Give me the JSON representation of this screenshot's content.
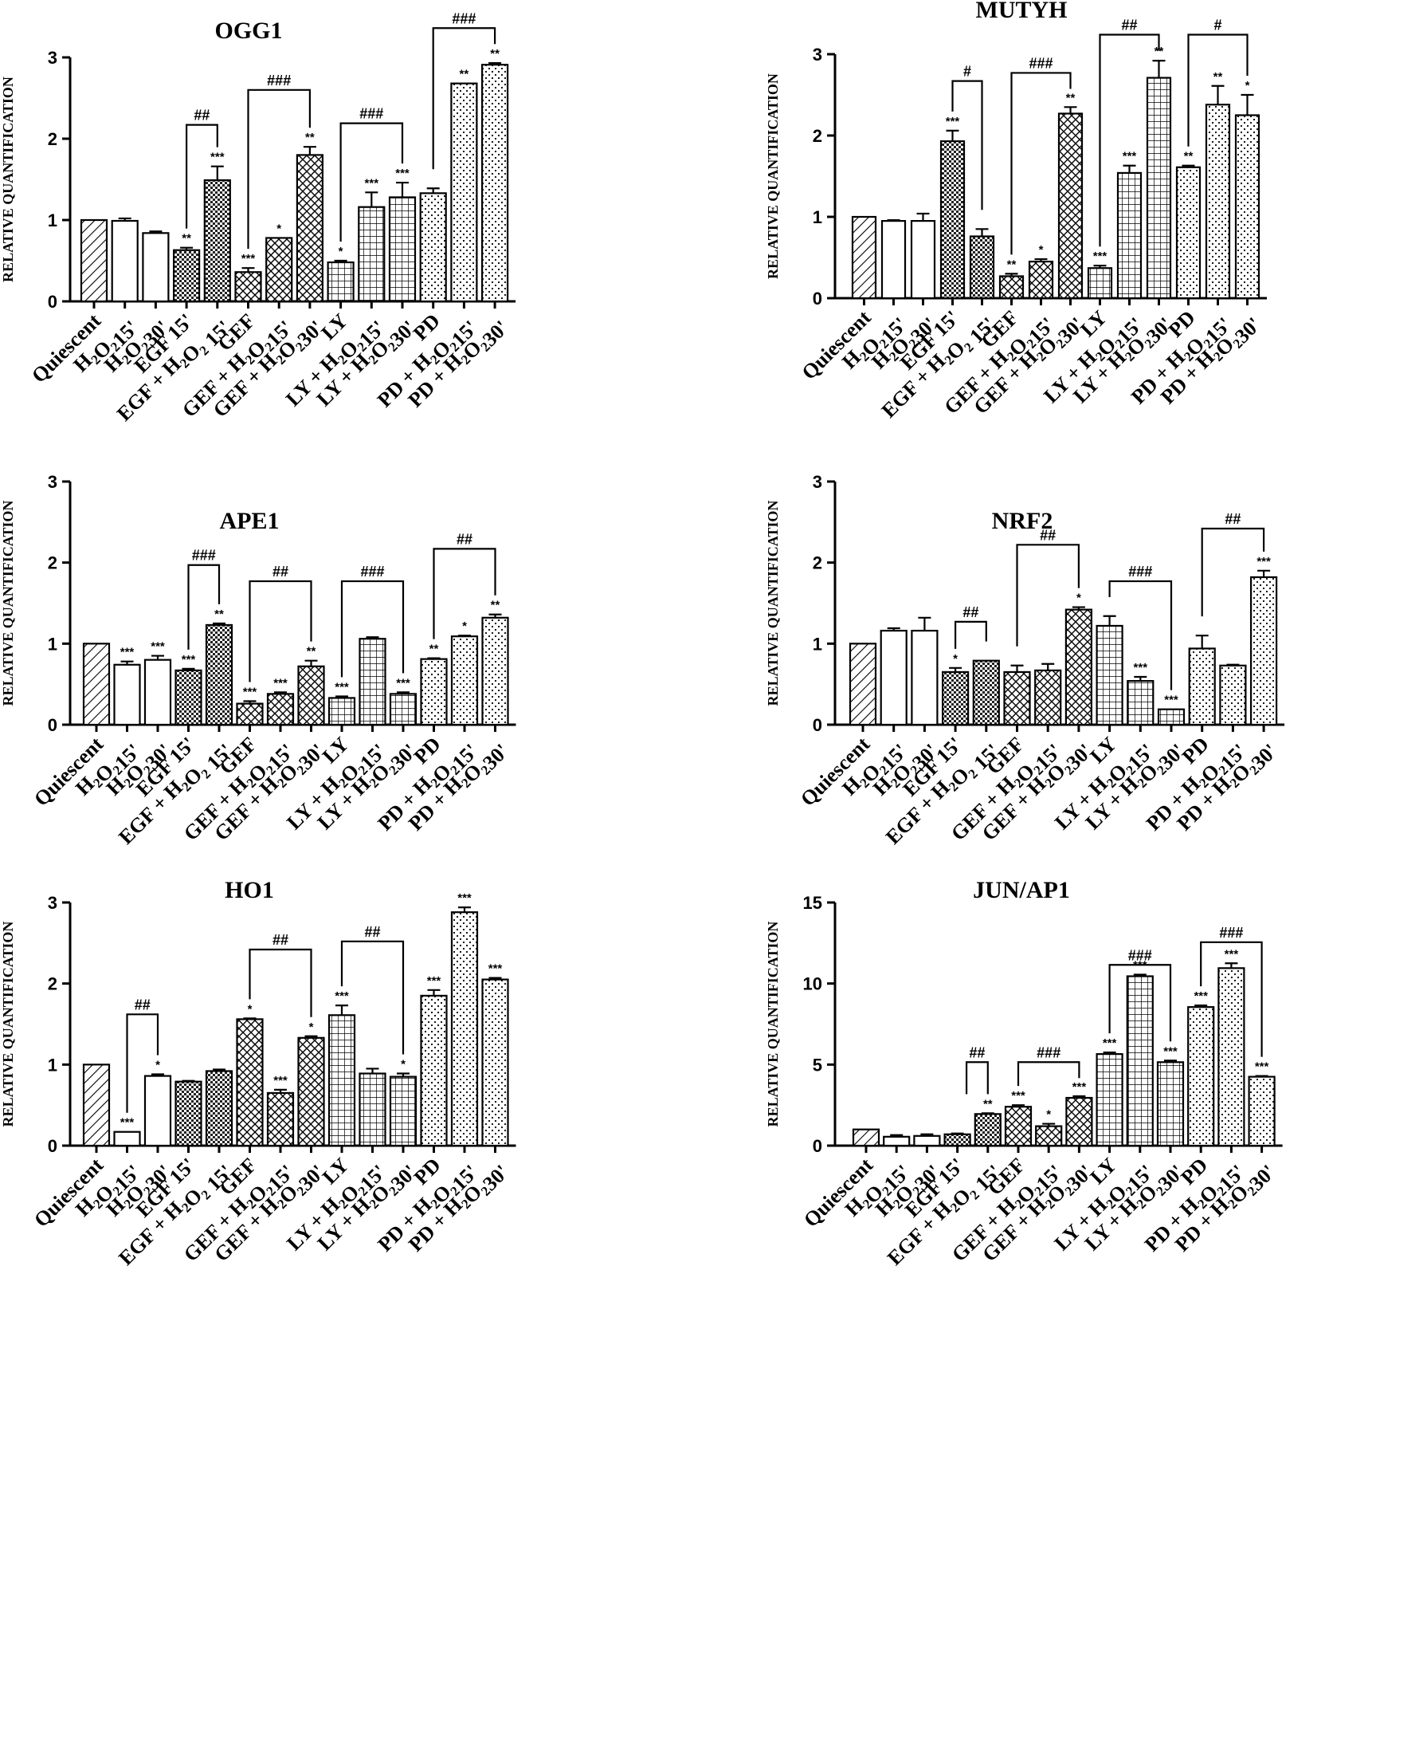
{
  "figure": {
    "categories": [
      {
        "label": "Quiescent",
        "main": "Quiescent",
        "sub1": "",
        "mid": "",
        "sub2": "",
        "tail": ""
      },
      {
        "label": "H2O2 15'",
        "main": "H",
        "sub1": "2",
        "mid": "O",
        "sub2": "2",
        "tail": "15'"
      },
      {
        "label": "H2O2 30'",
        "main": "H",
        "sub1": "2",
        "mid": "O",
        "sub2": "2",
        "tail": "30'"
      },
      {
        "label": "EGF 15'",
        "main": "EGF 15'",
        "sub1": "",
        "mid": "",
        "sub2": "",
        "tail": ""
      },
      {
        "label": "EGF + H2O2 15'",
        "main": "EGF + H",
        "sub1": "2",
        "mid": "O",
        "sub2": "2",
        "tail": " 15'"
      },
      {
        "label": "GEF",
        "main": "GEF",
        "sub1": "",
        "mid": "",
        "sub2": "",
        "tail": ""
      },
      {
        "label": "GEF + H2O2 15'",
        "main": "GEF + H",
        "sub1": "2",
        "mid": "O",
        "sub2": "2",
        "tail": "15'"
      },
      {
        "label": "GEF + H2O2 30'",
        "main": "GEF + H",
        "sub1": "2",
        "mid": "O",
        "sub2": "2",
        "tail": "30'"
      },
      {
        "label": "LY",
        "main": "LY",
        "sub1": "",
        "mid": "",
        "sub2": "",
        "tail": ""
      },
      {
        "label": "LY + H2O2 15'",
        "main": "LY + H",
        "sub1": "2",
        "mid": "O",
        "sub2": "2",
        "tail": "15'"
      },
      {
        "label": "LY + H2O2 30'",
        "main": "LY + H",
        "sub1": "2",
        "mid": "O",
        "sub2": "2",
        "tail": "30'"
      },
      {
        "label": "PD",
        "main": "PD",
        "sub1": "",
        "mid": "",
        "sub2": "",
        "tail": ""
      },
      {
        "label": "PD + H2O2 15'",
        "main": "PD + H",
        "sub1": "2",
        "mid": "O",
        "sub2": "2",
        "tail": "15'"
      },
      {
        "label": "PD + H2O2 30'",
        "main": "PD + H",
        "sub1": "2",
        "mid": "O",
        "sub2": "2",
        "tail": "30'"
      }
    ],
    "ylabel": "RELATIVE QUANTIFICATION",
    "patterns": [
      "diag",
      "white",
      "white",
      "checker",
      "checker",
      "lattice",
      "lattice",
      "lattice",
      "grid",
      "grid",
      "grid",
      "dots",
      "dots",
      "dots"
    ]
  },
  "chart_data": [
    {
      "type": "bar",
      "title": "OGG1",
      "ylim": [
        0,
        3
      ],
      "yticks": [
        "0",
        "1",
        "2",
        "3"
      ],
      "values": [
        1.0,
        0.99,
        0.84,
        0.63,
        1.49,
        0.36,
        0.78,
        1.8,
        0.48,
        1.16,
        1.28,
        1.33,
        2.68,
        2.91
      ],
      "errors": [
        0,
        0.03,
        0.02,
        0.03,
        0.17,
        0.05,
        0,
        0.1,
        0.02,
        0.18,
        0.18,
        0.06,
        0,
        0.02
      ],
      "stars": [
        "",
        "",
        "",
        "**",
        "***",
        "***",
        "*",
        "**",
        "*",
        "***",
        "***",
        "",
        "**",
        "**"
      ],
      "brackets": [
        {
          "from": 3,
          "to": 4,
          "y": 2.17,
          "label": "##"
        },
        {
          "from": 5,
          "to": 7,
          "y": 2.6,
          "label": "###"
        },
        {
          "from": 8,
          "to": 10,
          "y": 2.19,
          "label": "###"
        },
        {
          "from": 11,
          "to": 13,
          "y": 3.36,
          "label": "###"
        }
      ]
    },
    {
      "type": "bar",
      "title": "MUTYH",
      "ylim": [
        0,
        3
      ],
      "yticks": [
        "0",
        "1",
        "2",
        "3"
      ],
      "values": [
        1.0,
        0.95,
        0.95,
        1.93,
        0.76,
        0.27,
        0.45,
        2.27,
        0.37,
        1.54,
        2.71,
        1.61,
        2.38,
        2.25
      ],
      "errors": [
        0,
        0.01,
        0.09,
        0.13,
        0.09,
        0.03,
        0.03,
        0.08,
        0.03,
        0.09,
        0.21,
        0.02,
        0.23,
        0.25
      ],
      "stars": [
        "",
        "",
        "",
        "***",
        "",
        "**",
        "*",
        "**",
        "***",
        "***",
        "**",
        "**",
        "**",
        "*"
      ],
      "brackets": [
        {
          "from": 3,
          "to": 4,
          "y": 2.67,
          "label": "#"
        },
        {
          "from": 5,
          "to": 7,
          "y": 2.77,
          "label": "###"
        },
        {
          "from": 8,
          "to": 10,
          "y": 3.24,
          "label": "##"
        },
        {
          "from": 11,
          "to": 13,
          "y": 3.24,
          "label": "#"
        }
      ]
    },
    {
      "type": "bar",
      "title": "APE1",
      "ylim": [
        0,
        3
      ],
      "yticks": [
        "0",
        "1",
        "2",
        "3"
      ],
      "values": [
        1.0,
        0.74,
        0.8,
        0.67,
        1.23,
        0.26,
        0.38,
        0.72,
        0.33,
        1.06,
        0.38,
        0.81,
        1.09,
        1.32
      ],
      "errors": [
        0,
        0.04,
        0.05,
        0.02,
        0.02,
        0.03,
        0.02,
        0.07,
        0.02,
        0.02,
        0.02,
        0.01,
        0.01,
        0.04
      ],
      "stars": [
        "",
        "***",
        "***",
        "***",
        "**",
        "***",
        "***",
        "**",
        "***",
        "",
        "***",
        "**",
        "*",
        "**"
      ],
      "brackets": [
        {
          "from": 3,
          "to": 4,
          "y": 1.97,
          "label": "###"
        },
        {
          "from": 5,
          "to": 7,
          "y": 1.77,
          "label": "##"
        },
        {
          "from": 8,
          "to": 10,
          "y": 1.77,
          "label": "###"
        },
        {
          "from": 11,
          "to": 13,
          "y": 2.17,
          "label": "##"
        }
      ]
    },
    {
      "type": "bar",
      "title": "NRF2",
      "ylim": [
        0,
        3
      ],
      "yticks": [
        "0",
        "1",
        "2",
        "3"
      ],
      "values": [
        1.0,
        1.16,
        1.16,
        0.65,
        0.79,
        0.65,
        0.67,
        1.42,
        1.22,
        0.54,
        0.19,
        0.94,
        0.73,
        1.82
      ],
      "errors": [
        0,
        0.03,
        0.16,
        0.05,
        0,
        0.08,
        0.08,
        0.03,
        0.12,
        0.05,
        0,
        0.16,
        0.01,
        0.08
      ],
      "stars": [
        "",
        "",
        "",
        "*",
        "",
        "",
        "",
        "*",
        "",
        "***",
        "***",
        "",
        "",
        "***"
      ],
      "brackets": [
        {
          "from": 3,
          "to": 4,
          "y": 1.27,
          "label": "##"
        },
        {
          "from": 5,
          "to": 7,
          "y": 2.22,
          "label": "##"
        },
        {
          "from": 8,
          "to": 10,
          "y": 1.77,
          "label": "###"
        },
        {
          "from": 11,
          "to": 13,
          "y": 2.42,
          "label": "##"
        }
      ]
    },
    {
      "type": "bar",
      "title": "HO1",
      "ylim": [
        0,
        3
      ],
      "yticks": [
        "0",
        "1",
        "2",
        "3"
      ],
      "values": [
        1.0,
        0.17,
        0.86,
        0.79,
        0.92,
        1.56,
        0.65,
        1.33,
        1.61,
        0.89,
        0.85,
        1.85,
        2.88,
        2.05
      ],
      "errors": [
        0,
        0,
        0.02,
        0.01,
        0.02,
        0.01,
        0.04,
        0.02,
        0.12,
        0.06,
        0.04,
        0.07,
        0.06,
        0.02
      ],
      "stars": [
        "",
        "***",
        "*",
        "",
        "",
        "*",
        "***",
        "*",
        "***",
        "",
        "*",
        "***",
        "***",
        "***"
      ],
      "brackets": [
        {
          "from": 1,
          "to": 2,
          "y": 1.62,
          "label": "##"
        },
        {
          "from": 5,
          "to": 7,
          "y": 2.42,
          "label": "##"
        },
        {
          "from": 8,
          "to": 10,
          "y": 2.52,
          "label": "##"
        }
      ]
    },
    {
      "type": "bar",
      "title": "JUN/AP1",
      "ylim": [
        0,
        15
      ],
      "yticks": [
        "0",
        "5",
        "10",
        "15"
      ],
      "values": [
        1.0,
        0.55,
        0.6,
        0.7,
        1.95,
        2.4,
        1.2,
        2.95,
        5.65,
        10.45,
        5.15,
        8.55,
        10.95,
        4.25
      ],
      "errors": [
        0,
        0.1,
        0.1,
        0.05,
        0.05,
        0.1,
        0.15,
        0.1,
        0.1,
        0.1,
        0.1,
        0.1,
        0.3,
        0.05
      ],
      "stars": [
        "",
        "",
        "",
        "",
        "**",
        "***",
        "*",
        "***",
        "***",
        "***",
        "***",
        "***",
        "***",
        "***"
      ],
      "brackets": [
        {
          "from": 4,
          "to": 4,
          "y": 5.15,
          "label": "##",
          "left_x": 3.3
        },
        {
          "from": 5,
          "to": 7,
          "y": 5.15,
          "label": "###"
        },
        {
          "from": 8,
          "to": 10,
          "y": 11.15,
          "label": "###"
        },
        {
          "from": 11,
          "to": 13,
          "y": 12.55,
          "label": "###"
        }
      ]
    }
  ]
}
